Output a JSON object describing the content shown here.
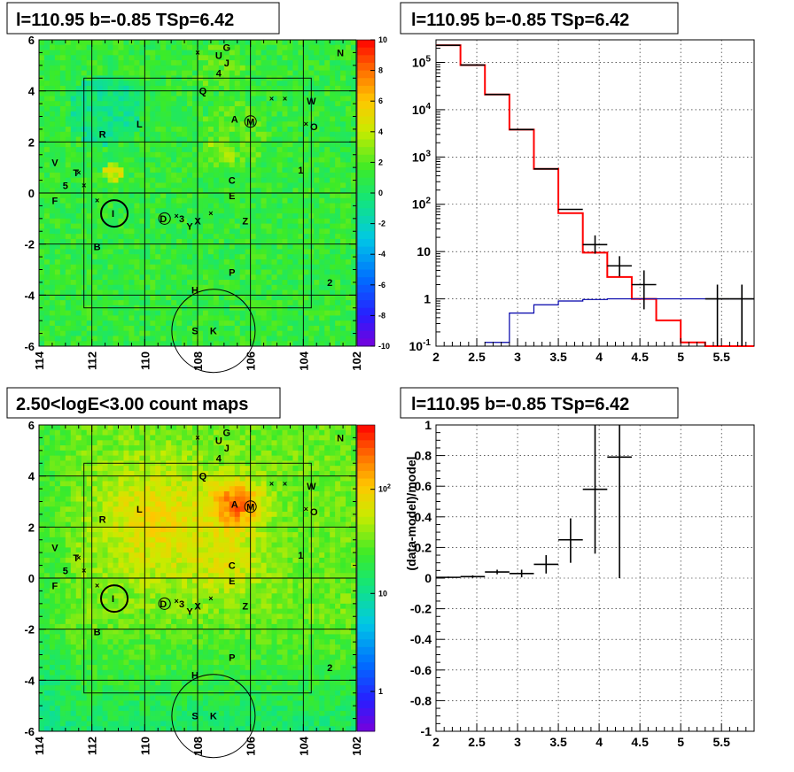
{
  "titles": {
    "tl": "l=110.95 b=-0.85 TSp=6.42",
    "tr": "l=110.95 b=-0.85 TSp=6.42",
    "bl": "2.50<logE<3.00 count maps",
    "br": "l=110.95 b=-0.85 TSp=6.42"
  },
  "chart_data": [
    {
      "id": "residual_map",
      "type": "heatmap",
      "title": "l=110.95 b=-0.85 TSp=6.42",
      "xlim": [
        114,
        102
      ],
      "ylim": [
        -6,
        6
      ],
      "x_ticks": [
        "114",
        "112",
        "110",
        "108",
        "106",
        "104",
        "102"
      ],
      "y_ticks": [
        "6",
        "4",
        "2",
        "0",
        "-2",
        "-4",
        "-6"
      ],
      "colorbar_ticks": [
        "10",
        "8",
        "6",
        "4",
        "2",
        "0",
        "-2",
        "-4",
        "-6",
        "-8",
        "-10"
      ],
      "colorbar_range": [
        -10,
        10
      ],
      "source_labels": [
        {
          "t": "G",
          "l": 106.9,
          "b": 5.7
        },
        {
          "t": "U",
          "l": 107.2,
          "b": 5.4
        },
        {
          "t": "J",
          "l": 106.9,
          "b": 5.1
        },
        {
          "t": "4",
          "l": 107.2,
          "b": 4.7
        },
        {
          "t": "N",
          "l": 102.6,
          "b": 5.5
        },
        {
          "t": "Q",
          "l": 107.8,
          "b": 4.0
        },
        {
          "t": "W",
          "l": 103.7,
          "b": 3.6
        },
        {
          "t": "L",
          "l": 110.2,
          "b": 2.7
        },
        {
          "t": "A",
          "l": 106.6,
          "b": 2.9
        },
        {
          "t": "M",
          "l": 106.0,
          "b": 2.8
        },
        {
          "t": "O",
          "l": 103.6,
          "b": 2.6
        },
        {
          "t": "R",
          "l": 111.6,
          "b": 2.3
        },
        {
          "t": "1",
          "l": 104.1,
          "b": 0.9
        },
        {
          "t": "V",
          "l": 113.4,
          "b": 1.2
        },
        {
          "t": "T",
          "l": 112.6,
          "b": 0.8
        },
        {
          "t": "C",
          "l": 106.7,
          "b": 0.5
        },
        {
          "t": "5",
          "l": 113.0,
          "b": 0.3
        },
        {
          "t": "E",
          "l": 106.7,
          "b": -0.1
        },
        {
          "t": "F",
          "l": 113.4,
          "b": -0.3
        },
        {
          "t": "I",
          "l": 111.2,
          "b": -0.8
        },
        {
          "t": "D",
          "l": 109.3,
          "b": -1.0
        },
        {
          "t": "3",
          "l": 108.6,
          "b": -1.0
        },
        {
          "t": "Y",
          "l": 108.3,
          "b": -1.3
        },
        {
          "t": "X",
          "l": 108.0,
          "b": -1.1
        },
        {
          "t": "Z",
          "l": 106.2,
          "b": -1.1
        },
        {
          "t": "B",
          "l": 111.8,
          "b": -2.1
        },
        {
          "t": "P",
          "l": 106.7,
          "b": -3.1
        },
        {
          "t": "2",
          "l": 103.0,
          "b": -3.5
        },
        {
          "t": "H",
          "l": 108.1,
          "b": -3.8
        },
        {
          "t": "S",
          "l": 108.1,
          "b": -5.4
        },
        {
          "t": "K",
          "l": 107.4,
          "b": -5.4
        }
      ]
    },
    {
      "id": "spectrum",
      "type": "line",
      "title": "l=110.95 b=-0.85 TSp=6.42",
      "xlim": [
        2,
        5.9
      ],
      "ylim": [
        0.1,
        300000
      ],
      "yscale": "log",
      "x_ticks": [
        "2",
        "2.5",
        "3",
        "3.5",
        "4",
        "4.5",
        "5",
        "5.5"
      ],
      "y_ticks": [
        "10^5",
        "10^4",
        "10^3",
        "10^2",
        "10",
        "1",
        "10^-1"
      ],
      "grid": true,
      "series": [
        {
          "color": "#ff0000",
          "bins": [
            [
              2,
              2.3,
              230000
            ],
            [
              2.3,
              2.6,
              88000
            ],
            [
              2.6,
              2.9,
              21000
            ],
            [
              2.9,
              3.2,
              3800
            ],
            [
              3.2,
              3.5,
              560
            ],
            [
              3.5,
              3.8,
              65
            ],
            [
              3.8,
              4.1,
              9.5
            ],
            [
              4.1,
              4.4,
              2.9
            ],
            [
              4.4,
              4.7,
              1.0
            ],
            [
              4.7,
              5.0,
              0.35
            ],
            [
              5.0,
              5.3,
              0.12
            ],
            [
              5.3,
              5.9,
              0.1
            ]
          ]
        },
        {
          "color": "#0000aa",
          "bins": [
            [
              2.6,
              2.9,
              0.12
            ],
            [
              2.9,
              3.2,
              0.5
            ],
            [
              3.2,
              3.5,
              0.75
            ],
            [
              3.5,
              3.8,
              0.9
            ],
            [
              3.8,
              4.1,
              0.97
            ],
            [
              4.1,
              4.4,
              1.0
            ],
            [
              4.4,
              4.7,
              1.0
            ],
            [
              4.7,
              5.0,
              1.0
            ],
            [
              5.0,
              5.3,
              1.0
            ],
            [
              5.3,
              5.6,
              1.0
            ],
            [
              5.6,
              5.9,
              1.0
            ]
          ]
        }
      ],
      "points": [
        {
          "x": 2.15,
          "y": 230000
        },
        {
          "x": 2.45,
          "y": 88000
        },
        {
          "x": 2.75,
          "y": 21000
        },
        {
          "x": 3.05,
          "y": 3800
        },
        {
          "x": 3.35,
          "y": 560
        },
        {
          "x": 3.65,
          "y": 78,
          "xerr": 0.15
        },
        {
          "x": 3.95,
          "y": 14,
          "xerr": 0.15,
          "ylo": 9,
          "yhi": 22
        },
        {
          "x": 4.25,
          "y": 5,
          "xerr": 0.15,
          "ylo": 3,
          "yhi": 8
        },
        {
          "x": 4.55,
          "y": 2,
          "xerr": 0.15,
          "ylo": 0.6,
          "yhi": 4
        },
        {
          "x": 5.45,
          "y": 1,
          "xerr": 0.15,
          "ylo": 0.1,
          "yhi": 2
        },
        {
          "x": 5.75,
          "y": 1,
          "xerr": 0.15,
          "ylo": 0.1,
          "yhi": 2
        }
      ]
    },
    {
      "id": "count_map",
      "type": "heatmap",
      "title": "2.50<logE<3.00 count maps",
      "xlim": [
        114,
        102
      ],
      "ylim": [
        -6,
        6
      ],
      "x_ticks": [
        "114",
        "112",
        "110",
        "108",
        "106",
        "104",
        "102"
      ],
      "y_ticks": [
        "6",
        "4",
        "2",
        "0",
        "-2",
        "-4",
        "-6"
      ],
      "colorbar_scale": "log",
      "colorbar_ticks": [
        "10^2",
        "10",
        "1"
      ]
    },
    {
      "id": "residual_fraction",
      "type": "scatter",
      "title": "l=110.95 b=-0.85 TSp=6.42",
      "ylabel": "(data-model)/model",
      "xlim": [
        2,
        5.9
      ],
      "ylim": [
        -1,
        1
      ],
      "x_ticks": [
        "2",
        "2.5",
        "3",
        "3.5",
        "4",
        "4.5",
        "5",
        "5.5"
      ],
      "y_ticks": [
        "1",
        "0.8",
        "0.6",
        "0.4",
        "0.2",
        "0",
        "-0.2",
        "-0.4",
        "-0.6",
        "-0.8",
        "-1"
      ],
      "grid": true,
      "points": [
        {
          "x": 2.15,
          "y": 0.005,
          "xerr": 0.15,
          "yerr": 0.005
        },
        {
          "x": 2.45,
          "y": 0.01,
          "xerr": 0.15,
          "yerr": 0.008
        },
        {
          "x": 2.75,
          "y": 0.04,
          "xerr": 0.15,
          "yerr": 0.015
        },
        {
          "x": 3.05,
          "y": 0.03,
          "xerr": 0.15,
          "yerr": 0.025
        },
        {
          "x": 3.35,
          "y": 0.09,
          "xerr": 0.15,
          "yerr": 0.06
        },
        {
          "x": 3.65,
          "y": 0.25,
          "xerr": 0.15,
          "ylo": 0.1,
          "yhi": 0.39
        },
        {
          "x": 3.95,
          "y": 0.58,
          "xerr": 0.15,
          "ylo": 0.16,
          "yhi": 1.0
        },
        {
          "x": 4.25,
          "y": 0.79,
          "xerr": 0.15,
          "ylo": 0.0,
          "yhi": 1.0
        }
      ]
    }
  ]
}
